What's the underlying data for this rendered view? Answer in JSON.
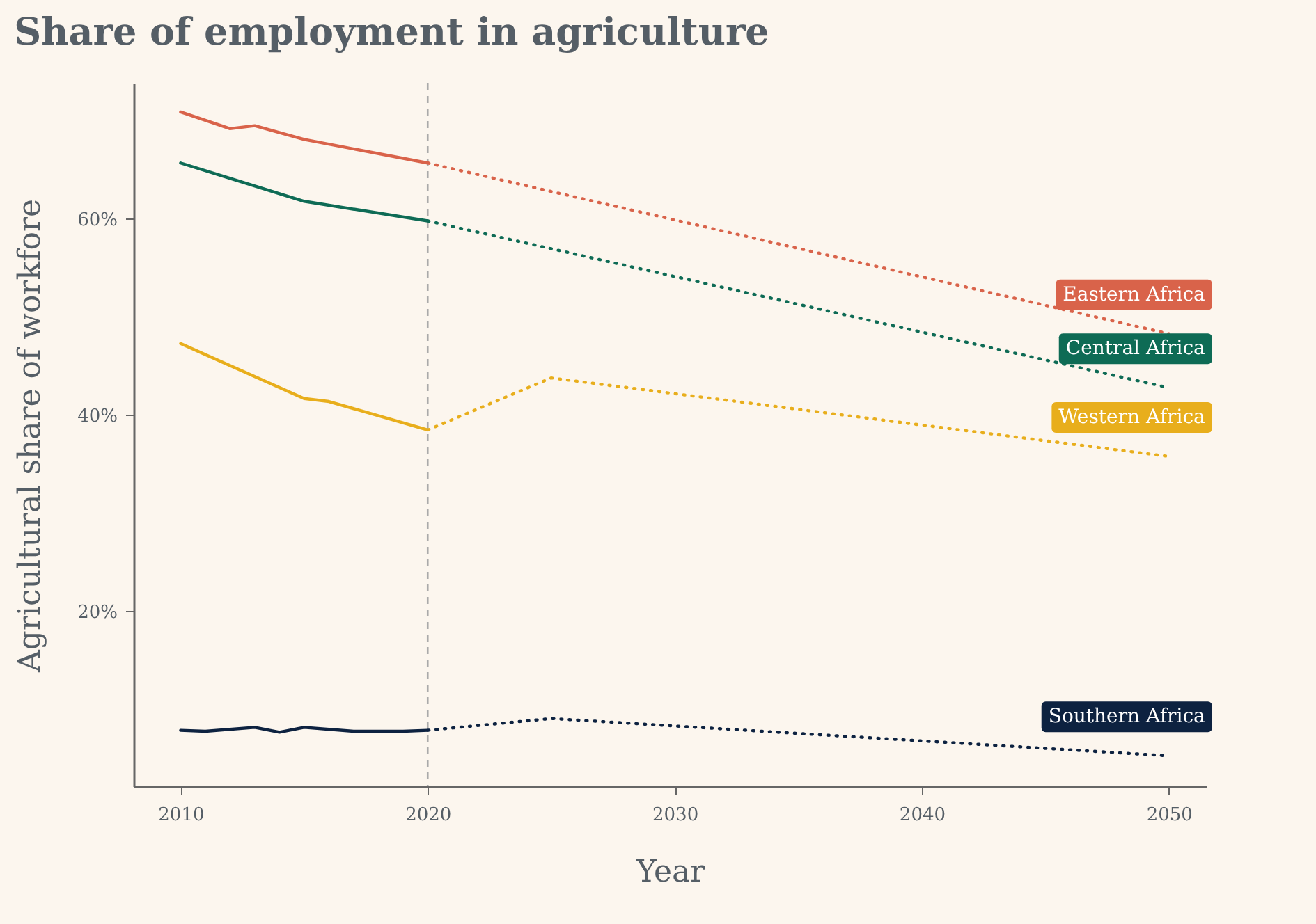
{
  "chart_data": {
    "type": "line",
    "title": "Share of employment in agriculture",
    "xlabel": "Year",
    "ylabel": "Agricultural share of workfore",
    "xlim": [
      2008.1,
      2051.5
    ],
    "xticks": [
      2010,
      2020,
      2030,
      2040,
      2050
    ],
    "ylim": [
      2.2,
      73.8
    ],
    "yticks": [
      {
        "value": 20,
        "label": "20%"
      },
      {
        "value": 40,
        "label": "40%"
      },
      {
        "value": 60,
        "label": "60%"
      }
    ],
    "grid": false,
    "legend": false,
    "marker": "none",
    "ref_lines": [
      {
        "axis": "x",
        "value": 2020,
        "color": "#aaaaaa",
        "line_style": "dashed"
      }
    ],
    "series": [
      {
        "name": "Eastern Africa",
        "color": "#d9634a",
        "line_style": "solid",
        "x": [
          2010,
          2012,
          2013,
          2015,
          2020
        ],
        "values": [
          70.9,
          69.2,
          69.5,
          68.1,
          65.7
        ]
      },
      {
        "color": "#d9634a",
        "line_style": "dotted",
        "x": [
          2020,
          2050
        ],
        "values": [
          65.7,
          48.3
        ]
      },
      {
        "name": "Central Africa",
        "color": "#0e6b55",
        "line_style": "solid",
        "x": [
          2010,
          2015,
          2020
        ],
        "values": [
          65.7,
          61.8,
          59.8
        ]
      },
      {
        "color": "#0e6b55",
        "line_style": "dotted",
        "x": [
          2020,
          2050
        ],
        "values": [
          59.8,
          42.8
        ]
      },
      {
        "name": "Western Africa",
        "color": "#e8ae1c",
        "line_style": "solid",
        "x": [
          2010,
          2015,
          2016,
          2020
        ],
        "values": [
          47.3,
          41.7,
          41.4,
          38.5
        ]
      },
      {
        "color": "#e8ae1c",
        "line_style": "dotted",
        "x": [
          2020,
          2025,
          2050
        ],
        "values": [
          38.5,
          43.8,
          35.8
        ]
      },
      {
        "name": "Southern Africa",
        "color": "#0d2240",
        "line_style": "solid",
        "x": [
          2010,
          2011,
          2013,
          2014,
          2015,
          2017,
          2019,
          2020
        ],
        "values": [
          7.9,
          7.8,
          8.2,
          7.7,
          8.2,
          7.8,
          7.8,
          7.9
        ]
      },
      {
        "color": "#0d2240",
        "line_style": "dotted",
        "x": [
          2020,
          2025,
          2050
        ],
        "values": [
          7.9,
          9.1,
          5.3
        ]
      }
    ]
  }
}
